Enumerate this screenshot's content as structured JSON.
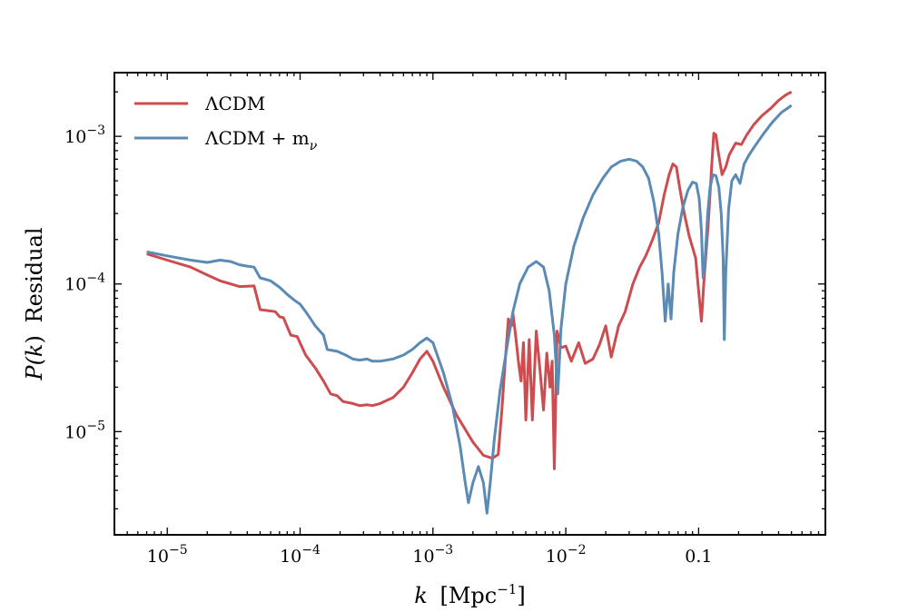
{
  "chart_data": {
    "type": "line",
    "title": "",
    "xlabel": "k [Mpc^-1]",
    "xlabel_parts": {
      "var": "k",
      "unit_open": "[Mpc",
      "unit_exp": "−1",
      "unit_close": "]"
    },
    "ylabel": "P(k) Residual",
    "ylabel_parts": {
      "func": "P(",
      "var": "k",
      "close": ")",
      "word": "Residual"
    },
    "xscale": "log",
    "yscale": "log",
    "xlim": [
      4e-06,
      0.9
    ],
    "ylim": [
      2e-06,
      0.0027
    ],
    "xticks": [
      {
        "value": 1e-05,
        "base": "10",
        "exp": "−5"
      },
      {
        "value": 0.0001,
        "base": "10",
        "exp": "−4"
      },
      {
        "value": 0.001,
        "base": "10",
        "exp": "−3"
      },
      {
        "value": 0.01,
        "base": "10",
        "exp": "−2"
      },
      {
        "value": 0.1,
        "base": "0.1",
        "exp": ""
      }
    ],
    "yticks": [
      {
        "value": 1e-05,
        "base": "10",
        "exp": "−5"
      },
      {
        "value": 0.0001,
        "base": "10",
        "exp": "−4"
      },
      {
        "value": 0.001,
        "base": "10",
        "exp": "−3"
      }
    ],
    "legend_position": "upper-left",
    "series": [
      {
        "name": "ΛCDM",
        "label_text": "ΛCDM",
        "color": "#cc4c4f",
        "points": [
          [
            7e-06,
            0.00016
          ],
          [
            1e-05,
            0.000145
          ],
          [
            1.5e-05,
            0.00013
          ],
          [
            2e-05,
            0.000115
          ],
          [
            2.5e-05,
            0.000105
          ],
          [
            3e-05,
            0.0001
          ],
          [
            3.5e-05,
            9.6e-05
          ],
          [
            4.5e-05,
            9.7e-05
          ],
          [
            5e-05,
            6.7e-05
          ],
          [
            6.5e-05,
            6.5e-05
          ],
          [
            7e-05,
            6e-05
          ],
          [
            7.5e-05,
            5.9e-05
          ],
          [
            8.5e-05,
            4.5e-05
          ],
          [
            9.5e-05,
            4.4e-05
          ],
          [
            0.00011,
            3.3e-05
          ],
          [
            0.00013,
            2.7e-05
          ],
          [
            0.00015,
            2.2e-05
          ],
          [
            0.00017,
            1.8e-05
          ],
          [
            0.00019,
            1.75e-05
          ],
          [
            0.00021,
            1.6e-05
          ],
          [
            0.00025,
            1.55e-05
          ],
          [
            0.00028,
            1.5e-05
          ],
          [
            0.00032,
            1.52e-05
          ],
          [
            0.00035,
            1.5e-05
          ],
          [
            0.0004,
            1.55e-05
          ],
          [
            0.0005,
            1.7e-05
          ],
          [
            0.0006,
            2e-05
          ],
          [
            0.0007,
            2.5e-05
          ],
          [
            0.0008,
            3.1e-05
          ],
          [
            0.0009,
            3.5e-05
          ],
          [
            0.001,
            3e-05
          ],
          [
            0.0012,
            2e-05
          ],
          [
            0.0015,
            1.3e-05
          ],
          [
            0.002,
            8.5e-06
          ],
          [
            0.0024,
            6.9e-06
          ],
          [
            0.0028,
            6.6e-06
          ],
          [
            0.0031,
            7e-06
          ],
          [
            0.0033,
            1.4e-05
          ],
          [
            0.0035,
            3e-05
          ],
          [
            0.0037,
            5.8e-05
          ],
          [
            0.0039,
            5.2e-05
          ],
          [
            0.004,
            6.3e-05
          ],
          [
            0.0042,
            4.4e-05
          ],
          [
            0.0044,
            3e-05
          ],
          [
            0.0046,
            2.2e-05
          ],
          [
            0.0048,
            4e-05
          ],
          [
            0.005,
            1.2e-05
          ],
          [
            0.0053,
            4.2e-05
          ],
          [
            0.0056,
            1.2e-05
          ],
          [
            0.006,
            4.8e-05
          ],
          [
            0.0064,
            2.6e-05
          ],
          [
            0.0068,
            1.4e-05
          ],
          [
            0.0072,
            3.4e-05
          ],
          [
            0.0076,
            2e-05
          ],
          [
            0.0079,
            3e-05
          ],
          [
            0.0082,
            5.6e-06
          ],
          [
            0.0086,
            4.8e-05
          ],
          [
            0.0092,
            3.7e-05
          ],
          [
            0.01,
            3.8e-05
          ],
          [
            0.011,
            3e-05
          ],
          [
            0.0125,
            4e-05
          ],
          [
            0.014,
            2.9e-05
          ],
          [
            0.016,
            3.1e-05
          ],
          [
            0.018,
            3.9e-05
          ],
          [
            0.02,
            5.2e-05
          ],
          [
            0.022,
            3.2e-05
          ],
          [
            0.025,
            5.2e-05
          ],
          [
            0.028,
            6.5e-05
          ],
          [
            0.032,
            0.0001
          ],
          [
            0.036,
            0.00013
          ],
          [
            0.04,
            0.000155
          ],
          [
            0.045,
            0.0002
          ],
          [
            0.05,
            0.00026
          ],
          [
            0.055,
            0.0004
          ],
          [
            0.06,
            0.00055
          ],
          [
            0.064,
            0.00065
          ],
          [
            0.068,
            0.00062
          ],
          [
            0.072,
            0.00045
          ],
          [
            0.078,
            0.0003
          ],
          [
            0.085,
            0.00021
          ],
          [
            0.095,
            0.00015
          ],
          [
            0.1,
            9e-05
          ],
          [
            0.105,
            5.6e-05
          ],
          [
            0.11,
            0.00011
          ],
          [
            0.118,
            0.00025
          ],
          [
            0.125,
            0.0006
          ],
          [
            0.13,
            0.00105
          ],
          [
            0.135,
            0.00102
          ],
          [
            0.14,
            0.0008
          ],
          [
            0.15,
            0.00055
          ],
          [
            0.16,
            0.00062
          ],
          [
            0.17,
            0.00075
          ],
          [
            0.19,
            0.0009
          ],
          [
            0.21,
            0.00088
          ],
          [
            0.23,
            0.00102
          ],
          [
            0.26,
            0.0012
          ],
          [
            0.3,
            0.00138
          ],
          [
            0.35,
            0.00155
          ],
          [
            0.4,
            0.00175
          ],
          [
            0.45,
            0.0019
          ],
          [
            0.5,
            0.002
          ]
        ]
      },
      {
        "name": "ΛCDM + m_ν",
        "label_text": "ΛCDM + m",
        "label_sub": "ν",
        "color": "#5b8ab4",
        "points": [
          [
            7e-06,
            0.000165
          ],
          [
            1e-05,
            0.000155
          ],
          [
            1.5e-05,
            0.000145
          ],
          [
            2e-05,
            0.00014
          ],
          [
            2.5e-05,
            0.000145
          ],
          [
            3e-05,
            0.000142
          ],
          [
            3.5e-05,
            0.000135
          ],
          [
            4e-05,
            0.000132
          ],
          [
            4.5e-05,
            0.00013
          ],
          [
            5e-05,
            0.00011
          ],
          [
            6e-05,
            0.000105
          ],
          [
            7e-05,
            9.5e-05
          ],
          [
            8e-05,
            8.5e-05
          ],
          [
            9e-05,
            7.8e-05
          ],
          [
            0.0001,
            7.3e-05
          ],
          [
            0.00011,
            6.5e-05
          ],
          [
            0.00012,
            5.8e-05
          ],
          [
            0.00013,
            5.2e-05
          ],
          [
            0.00015,
            4.5e-05
          ],
          [
            0.00016,
            3.6e-05
          ],
          [
            0.00019,
            3.5e-05
          ],
          [
            0.00022,
            3.3e-05
          ],
          [
            0.00025,
            3.1e-05
          ],
          [
            0.00028,
            3.05e-05
          ],
          [
            0.00032,
            3.1e-05
          ],
          [
            0.00035,
            3e-05
          ],
          [
            0.0004,
            3e-05
          ],
          [
            0.0005,
            3.1e-05
          ],
          [
            0.0006,
            3.3e-05
          ],
          [
            0.0007,
            3.6e-05
          ],
          [
            0.0008,
            4e-05
          ],
          [
            0.0009,
            4.3e-05
          ],
          [
            0.001,
            4e-05
          ],
          [
            0.0012,
            2.5e-05
          ],
          [
            0.0014,
            1.5e-05
          ],
          [
            0.0016,
            8e-06
          ],
          [
            0.00175,
            4.5e-06
          ],
          [
            0.00185,
            3.3e-06
          ],
          [
            0.002,
            4.5e-06
          ],
          [
            0.0022,
            5.8e-06
          ],
          [
            0.0024,
            4.5e-06
          ],
          [
            0.00255,
            2.8e-06
          ],
          [
            0.0027,
            4.5e-06
          ],
          [
            0.0029,
            9e-06
          ],
          [
            0.0032,
            1.9e-05
          ],
          [
            0.0036,
            3.7e-05
          ],
          [
            0.004,
            6.5e-05
          ],
          [
            0.0045,
            0.0001
          ],
          [
            0.0052,
            0.00013
          ],
          [
            0.006,
            0.000142
          ],
          [
            0.0068,
            0.00013
          ],
          [
            0.0075,
            9e-05
          ],
          [
            0.0082,
            4.5e-05
          ],
          [
            0.0087,
            1.8e-05
          ],
          [
            0.0092,
            5e-05
          ],
          [
            0.01,
            0.0001
          ],
          [
            0.0115,
            0.00018
          ],
          [
            0.0135,
            0.00028
          ],
          [
            0.016,
            0.0004
          ],
          [
            0.019,
            0.00052
          ],
          [
            0.022,
            0.00062
          ],
          [
            0.026,
            0.00068
          ],
          [
            0.03,
            0.0007
          ],
          [
            0.034,
            0.00068
          ],
          [
            0.038,
            0.00062
          ],
          [
            0.042,
            0.00052
          ],
          [
            0.046,
            0.00036
          ],
          [
            0.05,
            0.00022
          ],
          [
            0.053,
            0.00012
          ],
          [
            0.056,
            5.6e-05
          ],
          [
            0.059,
            0.0001
          ],
          [
            0.062,
            5.8e-05
          ],
          [
            0.065,
            0.00012
          ],
          [
            0.07,
            0.00022
          ],
          [
            0.076,
            0.00033
          ],
          [
            0.083,
            0.00043
          ],
          [
            0.09,
            0.00049
          ],
          [
            0.096,
            0.00048
          ],
          [
            0.101,
            0.00038
          ],
          [
            0.105,
            0.00023
          ],
          [
            0.108,
            0.00011
          ],
          [
            0.112,
            0.00015
          ],
          [
            0.117,
            0.0003
          ],
          [
            0.122,
            0.00045
          ],
          [
            0.128,
            0.00055
          ],
          [
            0.135,
            0.00054
          ],
          [
            0.142,
            0.00045
          ],
          [
            0.148,
            0.0003
          ],
          [
            0.153,
            0.00015
          ],
          [
            0.156,
            4.2e-05
          ],
          [
            0.16,
            0.00012
          ],
          [
            0.168,
            0.00032
          ],
          [
            0.178,
            0.0005
          ],
          [
            0.19,
            0.00055
          ],
          [
            0.205,
            0.00048
          ],
          [
            0.22,
            0.00065
          ],
          [
            0.24,
            0.00075
          ],
          [
            0.27,
            0.00088
          ],
          [
            0.31,
            0.00105
          ],
          [
            0.36,
            0.00125
          ],
          [
            0.42,
            0.00145
          ],
          [
            0.5,
            0.00162
          ]
        ]
      }
    ]
  }
}
